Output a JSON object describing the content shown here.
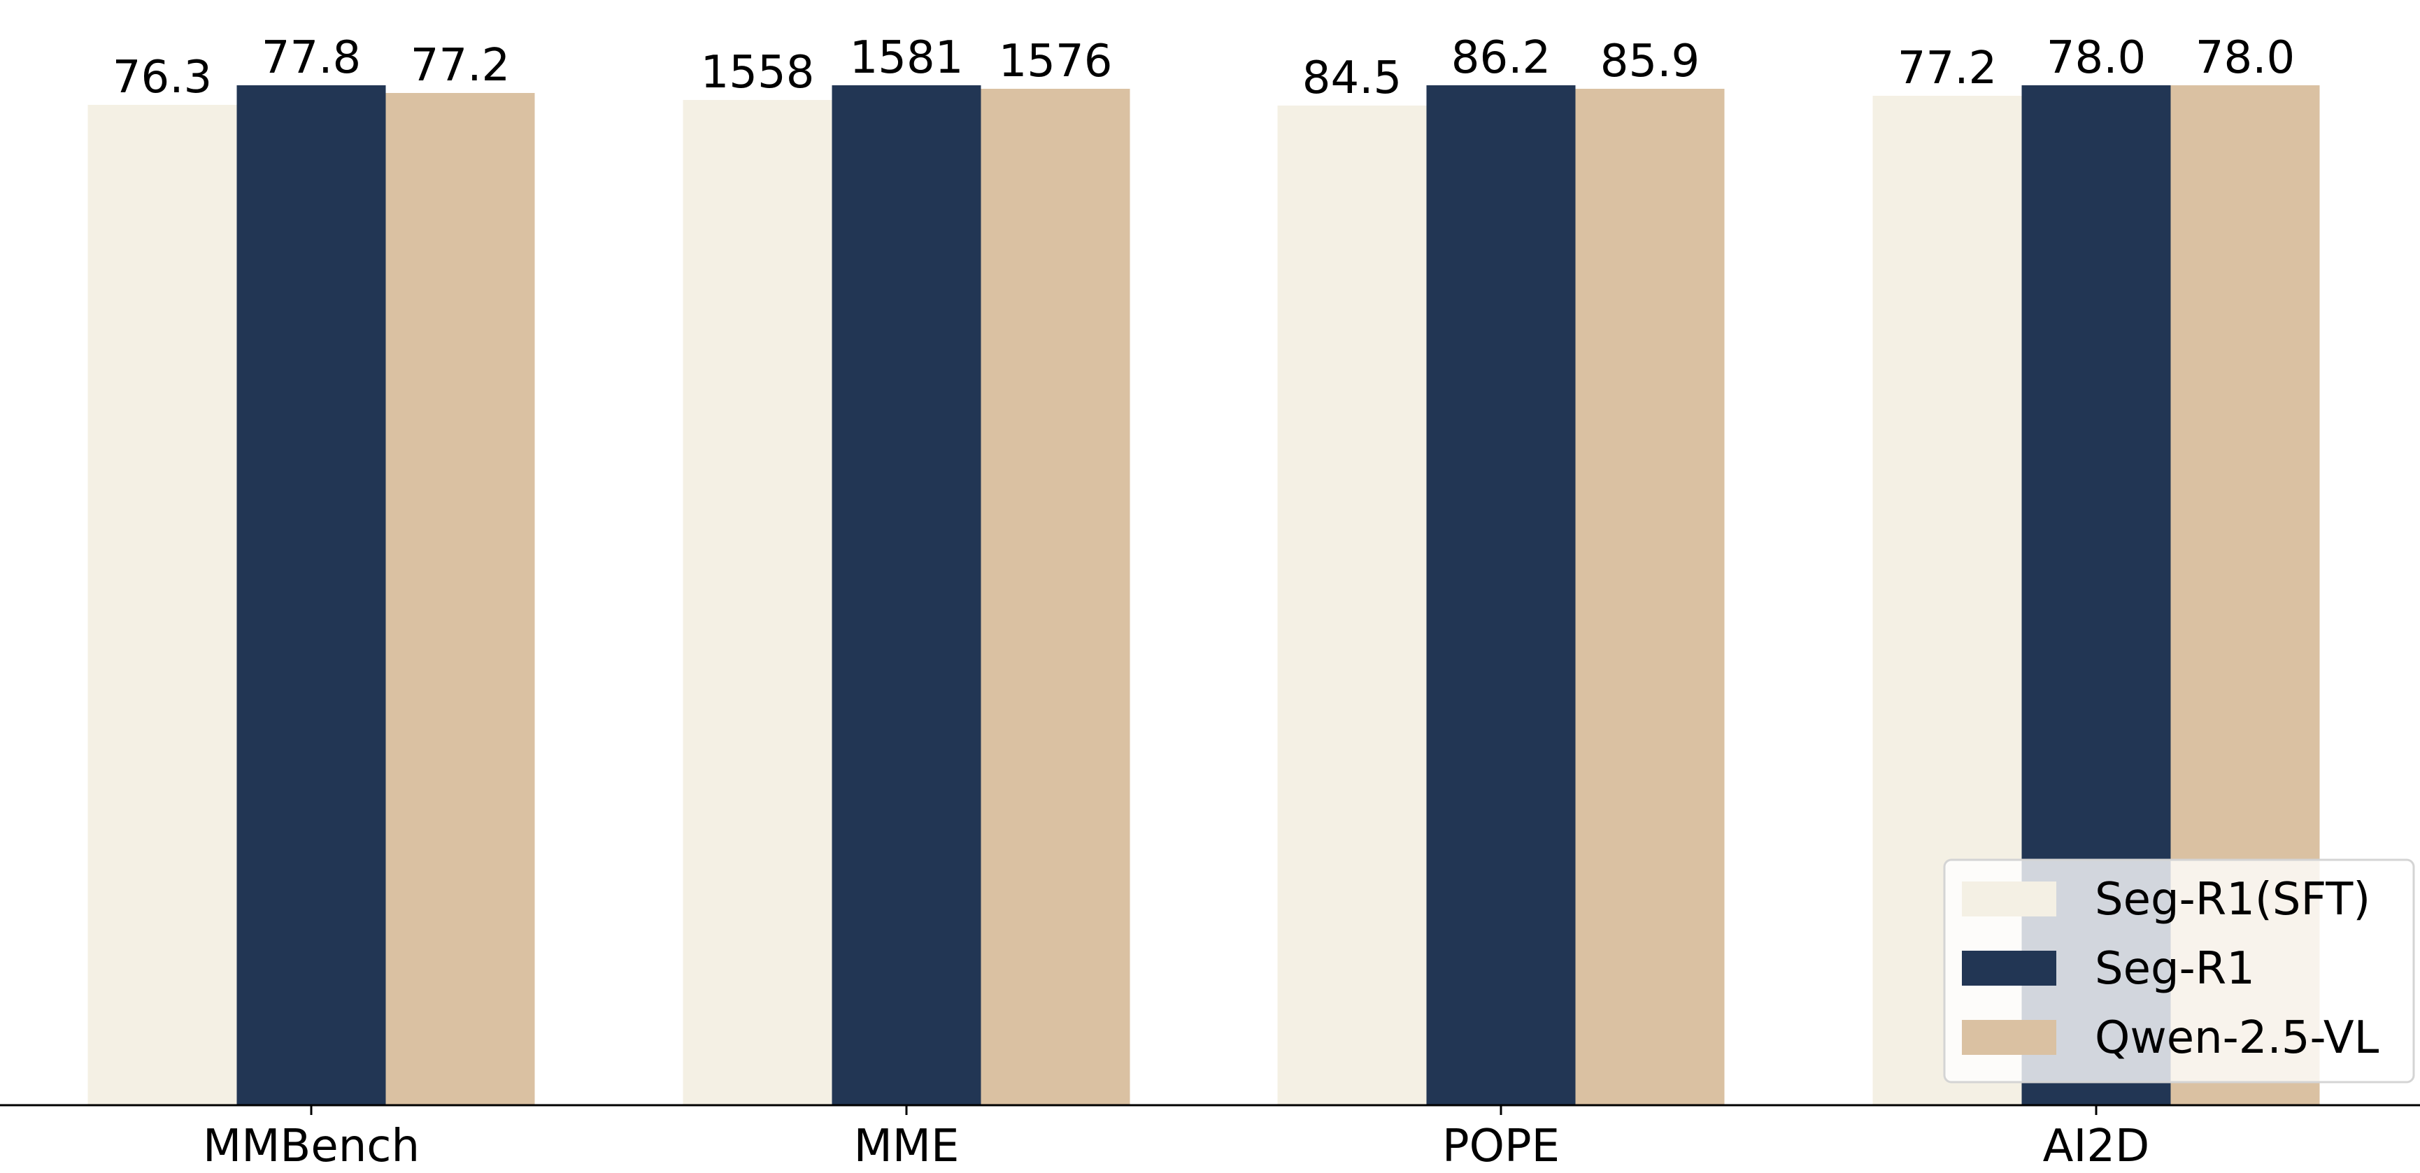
{
  "chart_data": {
    "type": "bar",
    "categories": [
      "MMBench",
      "MME",
      "POPE",
      "AI2D"
    ],
    "series": [
      {
        "name": "Seg-R1(SFT)",
        "color": "#f4f0e4",
        "values": [
          76.3,
          1558,
          84.5,
          77.2
        ],
        "labels": [
          "76.3",
          "1558",
          "84.5",
          "77.2"
        ]
      },
      {
        "name": "Seg-R1",
        "color": "#223654",
        "values": [
          77.8,
          1581,
          86.2,
          78.0
        ],
        "labels": [
          "77.8",
          "1581",
          "86.2",
          "78.0"
        ]
      },
      {
        "name": "Qwen-2.5-VL",
        "color": "#dac1a2",
        "values": [
          77.2,
          1576,
          85.9,
          78.0
        ],
        "labels": [
          "77.2",
          "1576",
          "85.9",
          "78.0"
        ]
      }
    ],
    "title": "",
    "xlabel": "",
    "ylabel": "",
    "y_axis_shown": false,
    "scale": "per-category",
    "grid": false,
    "legend_position": "lower-right"
  }
}
